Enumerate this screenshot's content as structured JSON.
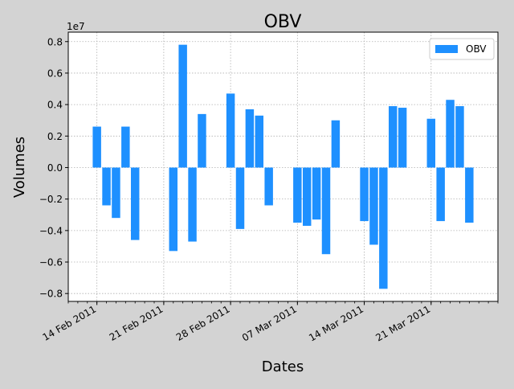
{
  "chart_data": {
    "type": "bar",
    "title": "OBV",
    "xlabel": "Dates",
    "ylabel": "Volumes",
    "y_scale_label": "1e7",
    "ylim": [
      -8.5,
      8.6
    ],
    "yticks": [
      -0.8,
      -0.6,
      -0.4,
      -0.2,
      0.0,
      0.2,
      0.4,
      0.6,
      0.8
    ],
    "ytick_labels": [
      "−0.8",
      "−0.6",
      "−0.4",
      "−0.2",
      "0.0",
      "0.2",
      "0.4",
      "0.6",
      "0.8"
    ],
    "xtick_dates": [
      "2011-02-14",
      "2011-02-21",
      "2011-02-28",
      "2011-03-07",
      "2011-03-14",
      "2011-03-21"
    ],
    "xtick_labels": [
      "14 Feb 2011",
      "21 Feb 2011",
      "28 Feb 2011",
      "07 Mar 2011",
      "14 Mar 2011",
      "21 Mar 2011"
    ],
    "xrange": [
      "2011-02-11",
      "2011-03-28"
    ],
    "grid": true,
    "legend_position": "upper right",
    "color": "#1e90ff",
    "series": [
      {
        "name": "OBV",
        "x": [
          "2011-02-14",
          "2011-02-15",
          "2011-02-16",
          "2011-02-17",
          "2011-02-18",
          "2011-02-22",
          "2011-02-23",
          "2011-02-24",
          "2011-02-25",
          "2011-02-28",
          "2011-03-01",
          "2011-03-02",
          "2011-03-03",
          "2011-03-04",
          "2011-03-07",
          "2011-03-08",
          "2011-03-09",
          "2011-03-10",
          "2011-03-11",
          "2011-03-14",
          "2011-03-15",
          "2011-03-16",
          "2011-03-17",
          "2011-03-18",
          "2011-03-21",
          "2011-03-22",
          "2011-03-23",
          "2011-03-24",
          "2011-03-25"
        ],
        "values": [
          2.6,
          -2.4,
          -3.2,
          2.6,
          -4.6,
          -5.3,
          7.8,
          -4.7,
          3.4,
          4.7,
          -3.9,
          3.7,
          3.3,
          -2.4,
          -3.5,
          -3.7,
          -3.3,
          -5.5,
          3.0,
          -3.4,
          -4.9,
          -7.7,
          3.9,
          3.8,
          3.1,
          -3.4,
          4.3,
          3.9,
          -3.5
        ]
      }
    ]
  }
}
